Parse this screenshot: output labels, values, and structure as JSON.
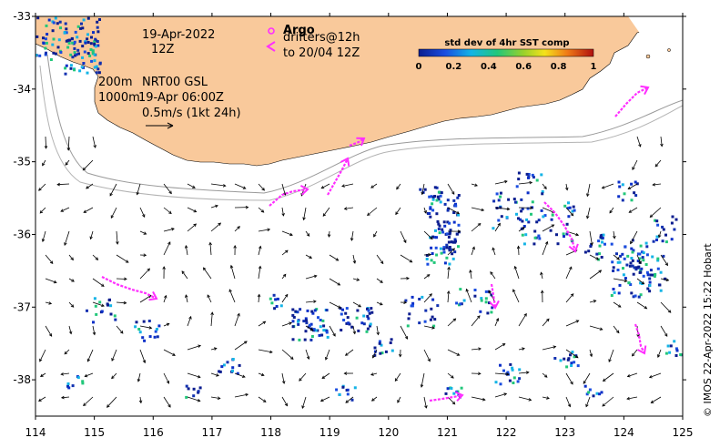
{
  "map": {
    "x_ticks": [
      "114",
      "115",
      "116",
      "117",
      "118",
      "119",
      "120",
      "121",
      "122",
      "123",
      "124",
      "125"
    ],
    "y_ticks": [
      "-33",
      "-34",
      "-35",
      "-36",
      "-37",
      "-38"
    ],
    "x_range": [
      114,
      125
    ],
    "y_range": [
      -38.5,
      -33
    ],
    "date_line1": "19-Apr-2022",
    "date_line2": "12Z",
    "depth_200": "200m",
    "depth_1000": "1000m",
    "product": "NRT00 GSL",
    "product_time": "19-Apr 06:00Z",
    "scale_text": "0.5m/s (1kt 24h)",
    "argo_label": "Argo",
    "drifters_line1": "drifters@12h",
    "drifters_line2": "to 20/04 12Z",
    "colorbar_title": "std dev of 4hr SST comp",
    "colorbar_ticks": [
      "0",
      "0.2",
      "0.4",
      "0.6",
      "0.8",
      "1"
    ],
    "colorbar_range": [
      0,
      1
    ],
    "credit": "© IMOS 22-Apr-2022 15:22 Hobart",
    "colors": {
      "land": "#f9c99b",
      "sst_low": "#0b1d8f",
      "drifter": "#ff2eff",
      "argo": "#ff2eff",
      "isobath": "#9a9a9a"
    }
  }
}
